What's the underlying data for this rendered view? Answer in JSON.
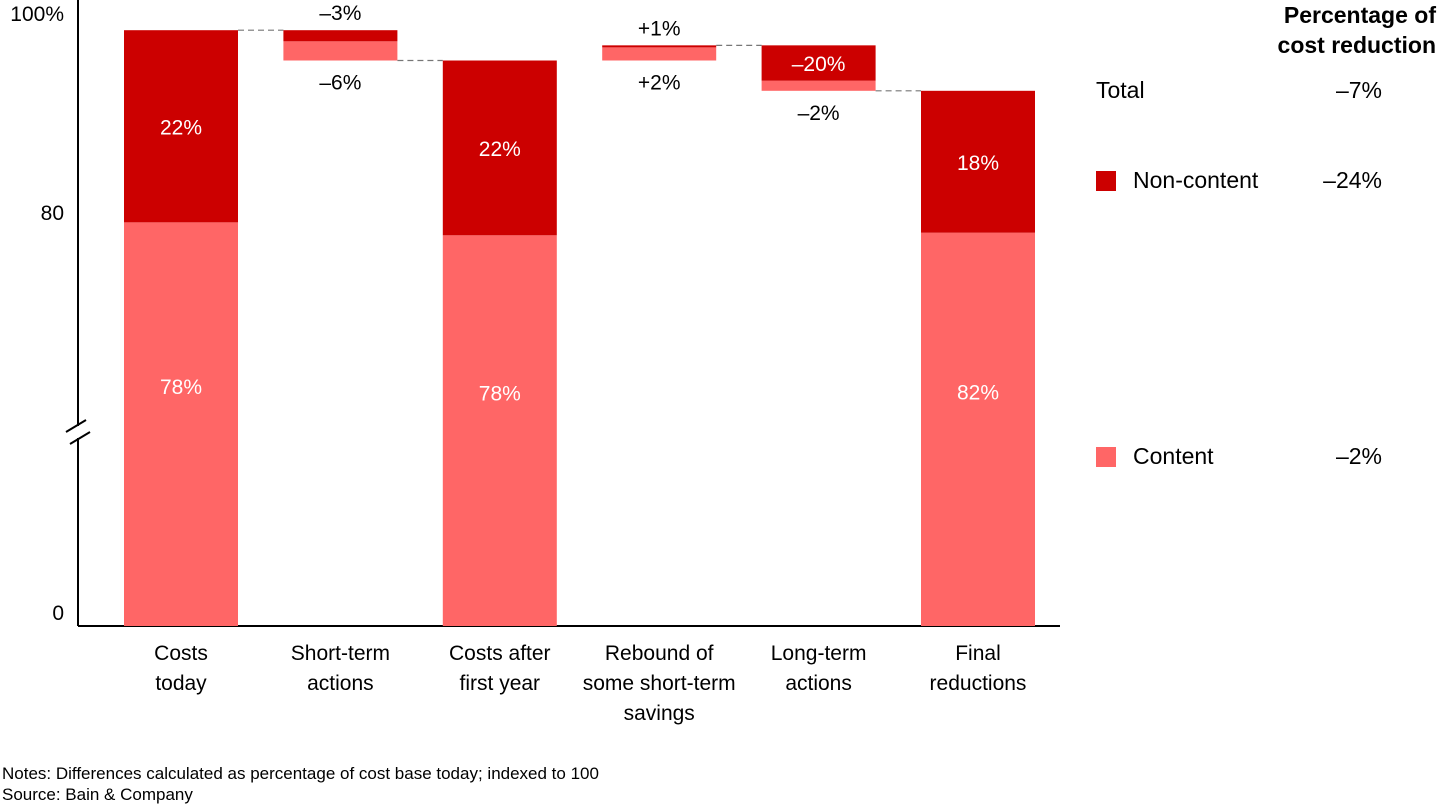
{
  "colors": {
    "non_content": "#cc0000",
    "content": "#ff6666",
    "axis": "#000000",
    "connector": "#777777"
  },
  "chart_data": {
    "type": "bar",
    "subtype": "stacked-waterfall",
    "y_axis": {
      "ticks": [
        {
          "value": 0,
          "label": "0"
        },
        {
          "value": 80,
          "label": "80"
        },
        {
          "value": 100,
          "label": "100%"
        }
      ],
      "axis_break": true,
      "ylim": [
        0,
        100
      ]
    },
    "categories": [
      {
        "label": [
          "Costs",
          "today"
        ],
        "kind": "total",
        "segments": [
          {
            "series": "content",
            "from": 0,
            "to": 78,
            "label": "78%"
          },
          {
            "series": "non_content",
            "from": 78,
            "to": 98,
            "label": "22%"
          }
        ]
      },
      {
        "label": [
          "Short-term",
          "actions"
        ],
        "kind": "delta",
        "segments": [
          {
            "series": "content",
            "from": 95,
            "to": 96.9
          },
          {
            "series": "non_content",
            "from": 96.9,
            "to": 98
          }
        ],
        "label_above": "–3%",
        "label_below": "–6%"
      },
      {
        "label": [
          "Costs after",
          "first year"
        ],
        "kind": "total",
        "segments": [
          {
            "series": "content",
            "from": 0,
            "to": 75.5,
            "label": "78%"
          },
          {
            "series": "non_content",
            "from": 75.5,
            "to": 95,
            "label": "22%"
          }
        ]
      },
      {
        "label": [
          "Rebound of",
          "some short-term",
          "savings"
        ],
        "kind": "delta",
        "segments": [
          {
            "series": "content",
            "from": 95,
            "to": 96.3
          },
          {
            "series": "non_content",
            "from": 96.3,
            "to": 96.5
          }
        ],
        "label_above": "+1%",
        "label_below": "+2%"
      },
      {
        "label": [
          "Long-term",
          "actions"
        ],
        "kind": "delta",
        "segments": [
          {
            "series": "content",
            "from": 92,
            "to": 93
          },
          {
            "series": "non_content",
            "from": 93,
            "to": 96.5,
            "label": "–20%"
          }
        ],
        "label_below": "–2%"
      },
      {
        "label": [
          "Final",
          "reductions"
        ],
        "kind": "total",
        "segments": [
          {
            "series": "content",
            "from": 0,
            "to": 76,
            "label": "82%"
          },
          {
            "series": "non_content",
            "from": 76,
            "to": 92,
            "label": "18%"
          }
        ]
      }
    ],
    "connectors": [
      {
        "from_bar": 0,
        "to_bar": 1,
        "value": 98
      },
      {
        "from_bar": 1,
        "to_bar": 2,
        "value": 95
      },
      {
        "from_bar": 3,
        "to_bar": 4,
        "value": 96.5
      },
      {
        "from_bar": 4,
        "to_bar": 5,
        "value": 92
      }
    ]
  },
  "legend": {
    "title": [
      "Percentage of",
      "cost reduction"
    ],
    "rows": [
      {
        "label": "Total",
        "value": "–7%",
        "series": null
      },
      {
        "label": "Non-content",
        "value": "–24%",
        "series": "non_content"
      },
      {
        "label": "Content",
        "value": "–2%",
        "series": "content"
      }
    ]
  },
  "notes": "Notes: Differences calculated as percentage of cost base today; indexed to 100",
  "source": "Source: Bain & Company"
}
